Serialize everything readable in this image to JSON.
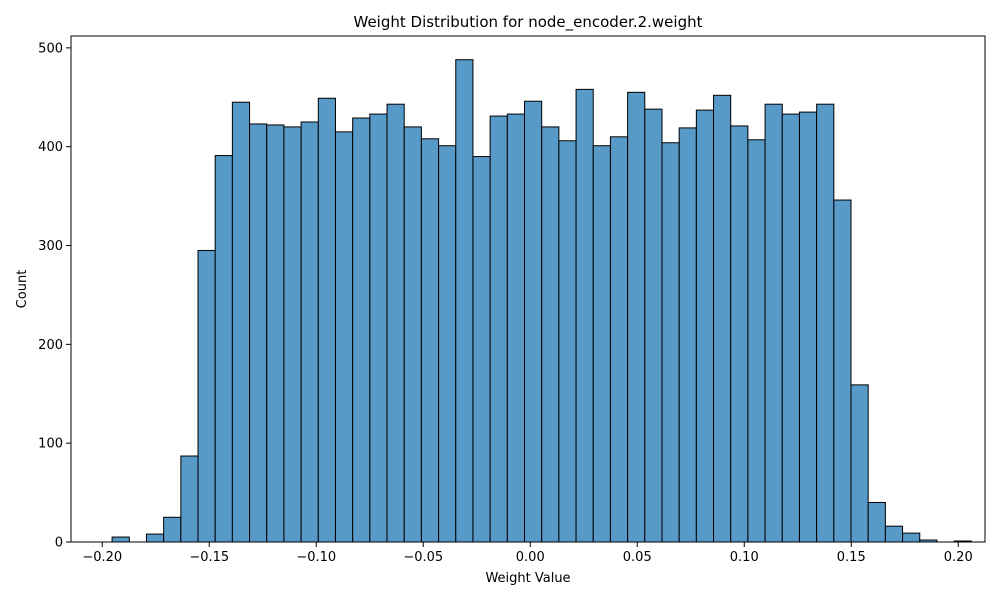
{
  "chart_data": {
    "type": "histogram",
    "title": "Weight Distribution for node_encoder.2.weight",
    "xlabel": "Weight Value",
    "ylabel": "Count",
    "xlim": [
      -0.2146,
      0.2125
    ],
    "ylim": [
      0,
      512
    ],
    "xticks": [
      -0.2,
      -0.15,
      -0.1,
      -0.05,
      0.0,
      0.05,
      0.1,
      0.15,
      0.2
    ],
    "xtick_labels": [
      "−0.20",
      "−0.15",
      "−0.10",
      "−0.05",
      "0.00",
      "0.05",
      "0.10",
      "0.15",
      "0.20"
    ],
    "yticks": [
      0,
      100,
      200,
      300,
      400,
      500
    ],
    "ytick_labels": [
      "0",
      "100",
      "200",
      "300",
      "400",
      "500"
    ],
    "bin_start": -0.1954,
    "bin_width": 0.00803,
    "bar_color": "#5799c7",
    "edge_color": "#000000",
    "counts": [
      5,
      0,
      8,
      25,
      87,
      295,
      391,
      445,
      423,
      422,
      420,
      425,
      449,
      415,
      429,
      433,
      443,
      420,
      408,
      401,
      488,
      390,
      431,
      433,
      446,
      420,
      406,
      458,
      401,
      410,
      455,
      438,
      404,
      419,
      437,
      452,
      421,
      407,
      443,
      433,
      435,
      443,
      346,
      159,
      40,
      16,
      9,
      2,
      0,
      1
    ]
  }
}
